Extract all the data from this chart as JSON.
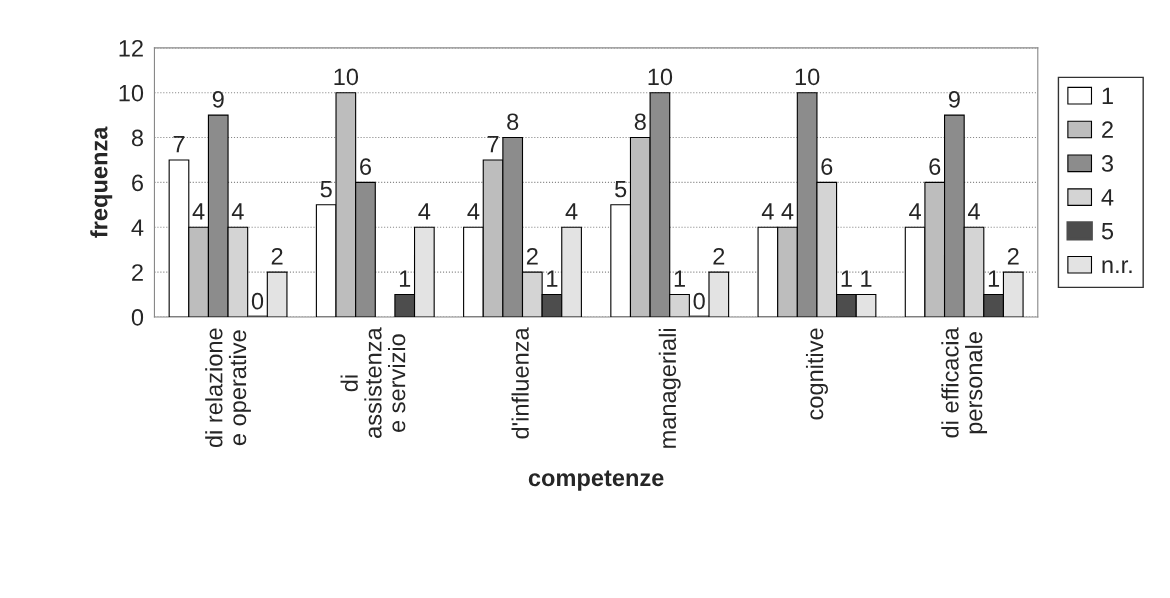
{
  "chart_data": {
    "type": "bar",
    "xlabel": "competenze",
    "ylabel": "frequenza",
    "categories": [
      "di relazione\ne operative",
      "di\nassistenza\ne servizio",
      "d'influenza",
      "manageriali",
      "cognitive",
      "di efficacia\npersonale"
    ],
    "series": [
      {
        "name": "1",
        "color": "#ffffff",
        "values": [
          7,
          5,
          4,
          5,
          4,
          4
        ],
        "value_labels": [
          "7",
          "5",
          "4",
          "5",
          "4",
          "4"
        ]
      },
      {
        "name": "2",
        "color": "#bdbdbd",
        "values": [
          4,
          10,
          7,
          8,
          4,
          6
        ],
        "value_labels": [
          "4",
          "10",
          "7",
          "8",
          "4",
          "6"
        ]
      },
      {
        "name": "3",
        "color": "#8c8c8c",
        "values": [
          9,
          6,
          8,
          10,
          10,
          9
        ],
        "value_labels": [
          "9",
          "6",
          "8",
          "10",
          "10",
          "9"
        ]
      },
      {
        "name": "4",
        "color": "#d4d4d4",
        "values": [
          4,
          null,
          2,
          1,
          6,
          4
        ],
        "value_labels": [
          "4",
          null,
          "2",
          "1",
          "6",
          "4"
        ]
      },
      {
        "name": "5",
        "color": "#4d4d4d",
        "values": [
          0,
          1,
          1,
          0,
          1,
          1
        ],
        "value_labels": [
          "0",
          "1",
          "1",
          "0",
          "1",
          "1"
        ]
      },
      {
        "name": "n.r.",
        "color": "#e3e3e3",
        "values": [
          2,
          4,
          4,
          2,
          1,
          2
        ],
        "value_labels": [
          "2",
          "4",
          "4",
          "2",
          "1",
          "2"
        ]
      }
    ],
    "ylim": [
      0,
      12
    ],
    "yticks": [
      0,
      2,
      4,
      6,
      8,
      10,
      12
    ],
    "grid": "y",
    "legend": "right"
  }
}
